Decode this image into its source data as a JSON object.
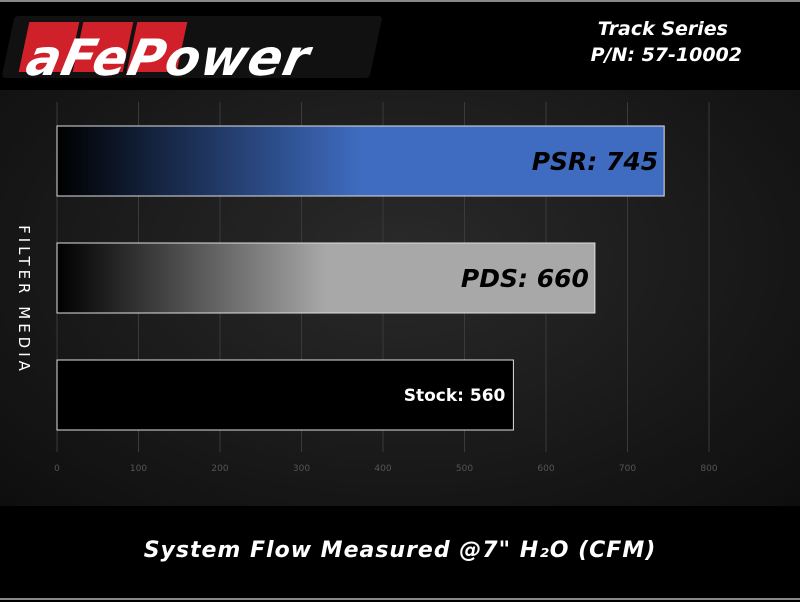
{
  "header": {
    "logo_text": "aFePower",
    "series": "Track Series",
    "part_number": "P/N: 57-10002"
  },
  "chart_data": {
    "type": "bar",
    "orientation": "horizontal",
    "categories": [
      "PSR",
      "PDS",
      "Stock"
    ],
    "values": [
      745,
      660,
      560
    ],
    "data_labels": [
      "PSR: 745",
      "PDS: 660",
      "Stock: 560"
    ],
    "colors": [
      "#3f6cc0",
      "#a8a8a8",
      "#000000"
    ],
    "xlabel": "System Flow Measured @7\" H₂O (CFM)",
    "ylabel": "FILTER MEDIA",
    "xlim": [
      0,
      800
    ],
    "xticks": [
      "0",
      "100",
      "200",
      "300",
      "400",
      "500",
      "600",
      "700",
      "800"
    ],
    "grid": true
  }
}
